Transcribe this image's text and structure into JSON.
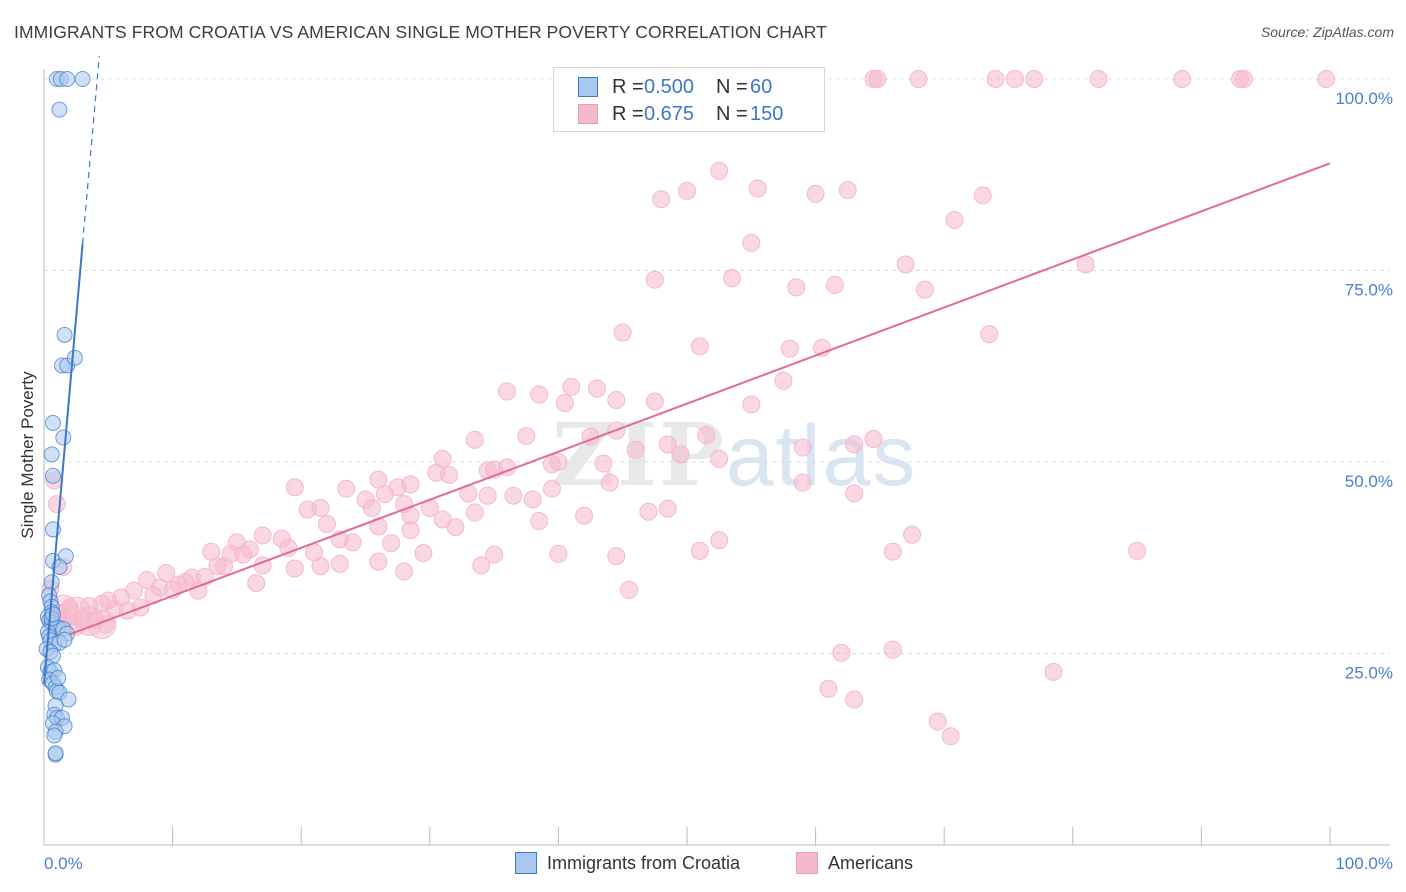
{
  "title": "IMMIGRANTS FROM CROATIA VS AMERICAN SINGLE MOTHER POVERTY CORRELATION CHART",
  "source": "Source: ZipAtlas.com",
  "watermark": {
    "part1": "ZIP",
    "part2": "atlas"
  },
  "legend": {
    "rows": [
      {
        "r_label": "R =",
        "r_value": "0.500",
        "n_label": "N =",
        "n_value": "60"
      },
      {
        "r_label": "R =",
        "r_value": "0.675",
        "n_label": "N =",
        "n_value": "150"
      }
    ]
  },
  "colors": {
    "blue": "#3b78c9",
    "blue_fill": "#a9c8ee",
    "pink": "#e26a96",
    "pink_fill": "#f6b8cc",
    "grid": "#dcdcdc",
    "axis_text": "#4a7fcf"
  },
  "chart_data": {
    "type": "scatter",
    "title": "IMMIGRANTS FROM CROATIA VS AMERICAN SINGLE MOTHER POVERTY CORRELATION CHART",
    "xlabel": "",
    "ylabel": "Single Mother Poverty",
    "xlim": [
      0,
      100
    ],
    "ylim": [
      0,
      100
    ],
    "x_tick_labels": [
      "0.0%",
      "100.0%"
    ],
    "y_tick_labels": [
      "25.0%",
      "50.0%",
      "75.0%",
      "100.0%"
    ],
    "y_ticks": [
      25,
      50,
      75,
      100
    ],
    "grid": true,
    "legend_position": "bottom",
    "series": [
      {
        "name": "Immigrants from Croatia",
        "r": 0.5,
        "n": 60,
        "trend": {
          "x0": 0.0,
          "y0": 21.0,
          "x1": 3.0,
          "y1": 78.5,
          "dash_to": [
            4.3,
            103.0
          ]
        },
        "points": [
          [
            1.0,
            100
          ],
          [
            1.3,
            100
          ],
          [
            1.8,
            100
          ],
          [
            3.0,
            100
          ],
          [
            1.2,
            96
          ],
          [
            1.6,
            66.6
          ],
          [
            1.4,
            62.6
          ],
          [
            1.8,
            62.6
          ],
          [
            2.4,
            63.6
          ],
          [
            0.7,
            55.1
          ],
          [
            1.5,
            53.2
          ],
          [
            0.6,
            51
          ],
          [
            0.7,
            48.2
          ],
          [
            0.7,
            41.2
          ],
          [
            0.7,
            37.1
          ],
          [
            1.7,
            37.7
          ],
          [
            1.2,
            36.3
          ],
          [
            0.6,
            34.3
          ],
          [
            0.4,
            32.6
          ],
          [
            0.5,
            31.8
          ],
          [
            0.6,
            31.1
          ],
          [
            0.6,
            30.4
          ],
          [
            0.3,
            29.8
          ],
          [
            0.4,
            29.3
          ],
          [
            0.6,
            29.0
          ],
          [
            0.8,
            28.7
          ],
          [
            1.1,
            28.4
          ],
          [
            1.5,
            28.2
          ],
          [
            1.8,
            27.6
          ],
          [
            0.3,
            27.8
          ],
          [
            0.4,
            27.2
          ],
          [
            0.5,
            26.7
          ],
          [
            0.8,
            26.2
          ],
          [
            1.2,
            26.4
          ],
          [
            1.6,
            26.8
          ],
          [
            0.2,
            25.6
          ],
          [
            0.5,
            25.2
          ],
          [
            0.7,
            24.7
          ],
          [
            0.3,
            23.2
          ],
          [
            0.5,
            22.6
          ],
          [
            0.8,
            22.8
          ],
          [
            0.4,
            21.6
          ],
          [
            0.7,
            21.1
          ],
          [
            0.9,
            20.6
          ],
          [
            1.0,
            20.1
          ],
          [
            1.2,
            19.9
          ],
          [
            1.9,
            19.0
          ],
          [
            0.9,
            18.2
          ],
          [
            0.8,
            17.0
          ],
          [
            1.0,
            16.6
          ],
          [
            1.4,
            16.6
          ],
          [
            0.7,
            15.9
          ],
          [
            1.6,
            15.5
          ],
          [
            0.9,
            14.8
          ],
          [
            0.8,
            14.3
          ],
          [
            0.9,
            11.8
          ],
          [
            0.9,
            12.0
          ],
          [
            1.1,
            21.8
          ],
          [
            0.6,
            29.6
          ],
          [
            0.7,
            30.1
          ]
        ]
      },
      {
        "name": "Americans",
        "r": 0.675,
        "n": 150,
        "trend": {
          "x0": 2.0,
          "y0": 27.5,
          "x1": 100.0,
          "y1": 89.0
        },
        "points": [
          [
            54,
            100
          ],
          [
            54.5,
            100
          ],
          [
            64.5,
            100
          ],
          [
            64.8,
            100
          ],
          [
            68,
            100
          ],
          [
            74,
            100
          ],
          [
            75.5,
            100
          ],
          [
            77,
            100
          ],
          [
            82,
            100
          ],
          [
            88.5,
            100
          ],
          [
            93,
            100
          ],
          [
            93.3,
            100
          ],
          [
            99.7,
            100
          ],
          [
            52.5,
            88.0
          ],
          [
            48,
            84.3
          ],
          [
            50,
            85.4
          ],
          [
            55.5,
            85.7
          ],
          [
            60,
            85.0
          ],
          [
            62.5,
            85.5
          ],
          [
            73,
            84.8
          ],
          [
            70.8,
            81.6
          ],
          [
            55,
            78.6
          ],
          [
            47.5,
            73.8
          ],
          [
            53.5,
            74.0
          ],
          [
            58.5,
            72.8
          ],
          [
            61.5,
            73.1
          ],
          [
            67,
            75.8
          ],
          [
            68.5,
            72.5
          ],
          [
            81,
            75.8
          ],
          [
            45,
            66.9
          ],
          [
            51,
            65.1
          ],
          [
            58,
            64.8
          ],
          [
            60.5,
            64.9
          ],
          [
            73.5,
            66.7
          ],
          [
            57.5,
            60.6
          ],
          [
            36,
            59.2
          ],
          [
            38.5,
            58.8
          ],
          [
            41,
            59.8
          ],
          [
            43,
            59.6
          ],
          [
            44.5,
            58.1
          ],
          [
            40.5,
            57.7
          ],
          [
            47.5,
            57.9
          ],
          [
            55,
            57.5
          ],
          [
            33.5,
            52.9
          ],
          [
            37.5,
            53.4
          ],
          [
            42.5,
            53.3
          ],
          [
            44.5,
            54.1
          ],
          [
            51.5,
            53.5
          ],
          [
            48.5,
            52.3
          ],
          [
            49.5,
            51.0
          ],
          [
            46,
            51.6
          ],
          [
            52.5,
            50.4
          ],
          [
            59,
            51.9
          ],
          [
            63,
            52.3
          ],
          [
            64.5,
            53.0
          ],
          [
            31,
            50.4
          ],
          [
            35,
            49.0
          ],
          [
            36,
            49.3
          ],
          [
            39.5,
            49.7
          ],
          [
            40,
            50.0
          ],
          [
            43.5,
            49.8
          ],
          [
            28.5,
            47.1
          ],
          [
            30.5,
            48.6
          ],
          [
            31.5,
            48.3
          ],
          [
            34.5,
            48.9
          ],
          [
            26,
            47.7
          ],
          [
            27.5,
            46.7
          ],
          [
            19.5,
            46.7
          ],
          [
            23.5,
            46.5
          ],
          [
            25,
            45.1
          ],
          [
            26.5,
            45.8
          ],
          [
            28,
            44.5
          ],
          [
            30,
            44.0
          ],
          [
            33,
            45.9
          ],
          [
            34.5,
            45.6
          ],
          [
            36.5,
            45.6
          ],
          [
            38,
            45.1
          ],
          [
            39.5,
            46.5
          ],
          [
            44,
            47.3
          ],
          [
            59,
            47.3
          ],
          [
            63,
            45.9
          ],
          [
            20.5,
            43.8
          ],
          [
            21.5,
            44.0
          ],
          [
            25.5,
            44.0
          ],
          [
            28.5,
            43.0
          ],
          [
            31,
            42.5
          ],
          [
            33.5,
            43.4
          ],
          [
            47,
            43.5
          ],
          [
            48.5,
            43.9
          ],
          [
            42,
            43.0
          ],
          [
            17,
            40.4
          ],
          [
            18.5,
            40.0
          ],
          [
            22,
            41.9
          ],
          [
            26,
            41.6
          ],
          [
            28.5,
            41.1
          ],
          [
            38.5,
            42.3
          ],
          [
            32,
            41.5
          ],
          [
            15,
            39.5
          ],
          [
            19,
            38.8
          ],
          [
            21,
            38.2
          ],
          [
            23,
            39.9
          ],
          [
            24,
            39.5
          ],
          [
            27,
            39.4
          ],
          [
            29.5,
            38.1
          ],
          [
            35,
            37.9
          ],
          [
            40,
            38.0
          ],
          [
            44.5,
            37.7
          ],
          [
            51,
            38.4
          ],
          [
            52.5,
            39.8
          ],
          [
            13,
            38.3
          ],
          [
            14.5,
            38.0
          ],
          [
            15.5,
            37.9
          ],
          [
            16,
            38.6
          ],
          [
            14,
            36.4
          ],
          [
            17,
            36.5
          ],
          [
            19.5,
            36.1
          ],
          [
            21.5,
            36.4
          ],
          [
            23,
            36.7
          ],
          [
            26,
            37.0
          ],
          [
            28,
            35.7
          ],
          [
            34,
            36.5
          ],
          [
            66,
            38.3
          ],
          [
            67.5,
            40.5
          ],
          [
            85,
            38.4
          ],
          [
            8,
            34.6
          ],
          [
            9.5,
            35.5
          ],
          [
            10.5,
            34.0
          ],
          [
            11.5,
            34.9
          ],
          [
            12.5,
            35.0
          ],
          [
            13.5,
            36.4
          ],
          [
            16.5,
            34.2
          ],
          [
            5,
            31.9
          ],
          [
            6,
            32.3
          ],
          [
            7,
            33.2
          ],
          [
            8.5,
            32.6
          ],
          [
            9,
            33.6
          ],
          [
            10,
            33.3
          ],
          [
            11,
            34.3
          ],
          [
            12,
            33.2
          ],
          [
            3.5,
            31.2
          ],
          [
            4.5,
            31.5
          ],
          [
            5.5,
            30.8
          ],
          [
            6.5,
            30.6
          ],
          [
            7.5,
            31.0
          ],
          [
            2.2,
            30.0
          ],
          [
            3.0,
            29.6
          ],
          [
            4.0,
            29.4
          ],
          [
            4.8,
            28.8
          ],
          [
            2.5,
            28.5
          ],
          [
            1.5,
            29.2
          ],
          [
            1.2,
            30.3
          ],
          [
            2.0,
            31.0
          ],
          [
            45.5,
            33.3
          ],
          [
            62,
            25.1
          ],
          [
            66,
            25.5
          ],
          [
            78.5,
            22.6
          ],
          [
            61,
            20.4
          ],
          [
            63,
            19.0
          ],
          [
            69.5,
            16.1
          ],
          [
            70.5,
            14.2
          ],
          [
            1.0,
            44.5
          ],
          [
            0.8,
            47.6
          ],
          [
            1.5,
            36.3
          ],
          [
            0.5,
            33.5
          ]
        ],
        "big_points": [
          [
            2.5,
            30.5
          ],
          [
            3.5,
            29.2
          ],
          [
            4.5,
            28.8
          ],
          [
            1.5,
            30.8
          ],
          [
            1.0,
            29.0
          ]
        ]
      }
    ]
  }
}
